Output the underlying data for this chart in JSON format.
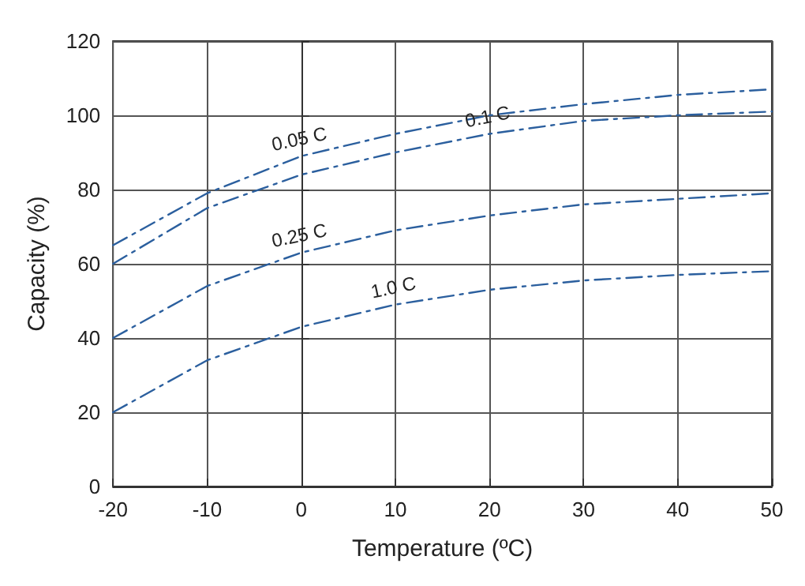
{
  "chart_data": {
    "type": "line",
    "xlabel": "Temperature (ºC)",
    "ylabel": "Capacity (%)",
    "x": [
      -20,
      -10,
      0,
      10,
      20,
      30,
      40,
      50
    ],
    "series": [
      {
        "name": "0.05 C",
        "color": "#2b5f9e",
        "values": [
          65,
          79,
          89,
          95,
          100,
          103,
          105.5,
          107
        ]
      },
      {
        "name": "0.1 C",
        "color": "#2b5f9e",
        "values": [
          60,
          75,
          84,
          90,
          95,
          98.5,
          100,
          101
        ]
      },
      {
        "name": "0.25 C",
        "color": "#2b5f9e",
        "values": [
          40,
          54,
          63,
          69,
          73,
          76,
          77.5,
          79
        ]
      },
      {
        "name": "1.0 C",
        "color": "#2b5f9e",
        "values": [
          20,
          34,
          43,
          49,
          53,
          55.5,
          57,
          58
        ]
      }
    ],
    "xlim": [
      -20,
      50
    ],
    "xticks": [
      -20,
      -10,
      0,
      10,
      20,
      30,
      40,
      50
    ],
    "ylim": [
      0,
      120
    ],
    "yticks": [
      0,
      20,
      40,
      60,
      80,
      100,
      120
    ],
    "grid": true,
    "legend": false,
    "marker": "none",
    "line_style": "dashed"
  }
}
